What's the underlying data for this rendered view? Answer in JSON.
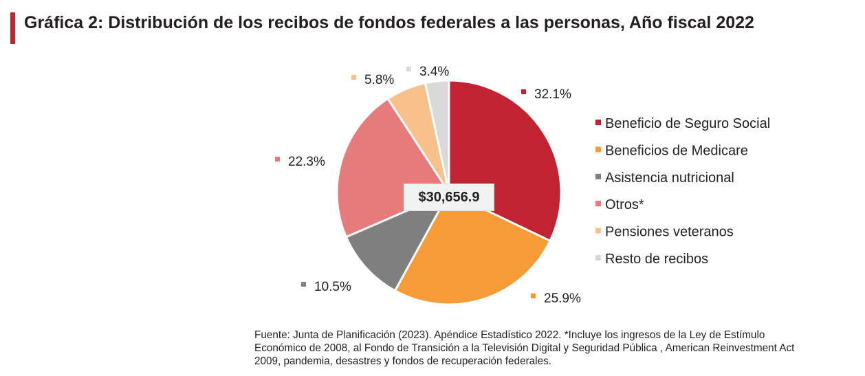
{
  "title": "Gráfica 2: Distribución de los recibos de fondos federales a las personas, Año fiscal 2022",
  "chart_data": {
    "type": "pie",
    "total_label": "$30,656.9",
    "slices": [
      {
        "name": "Beneficio de Seguro Social",
        "value": 32.1,
        "label": "32.1%",
        "color": "#c12332"
      },
      {
        "name": "Beneficios de Medicare",
        "value": 25.9,
        "label": "25.9%",
        "color": "#f59b37"
      },
      {
        "name": "Asistencia nutricional",
        "value": 10.5,
        "label": "10.5%",
        "color": "#7f7f80"
      },
      {
        "name": "Otros*",
        "value": 22.3,
        "label": "22.3%",
        "color": "#e57b7b"
      },
      {
        "name": "Pensiones veteranos",
        "value": 5.8,
        "label": "5.8%",
        "color": "#f8c18b"
      },
      {
        "name": "Resto de recibos",
        "value": 3.4,
        "label": "3.4%",
        "color": "#d9d9d9"
      }
    ],
    "legend_position": "right"
  },
  "source": "Fuente: Junta de Planificación (2023). Apéndice Estadístico 2022. *Incluye los ingresos de la Ley de Estímulo Económico de 2008, al Fondo de Transición a la Televisión Digital y Seguridad Pública , American Reinvestment Act 2009, pandemia, desastres y fondos de recuperación federales."
}
